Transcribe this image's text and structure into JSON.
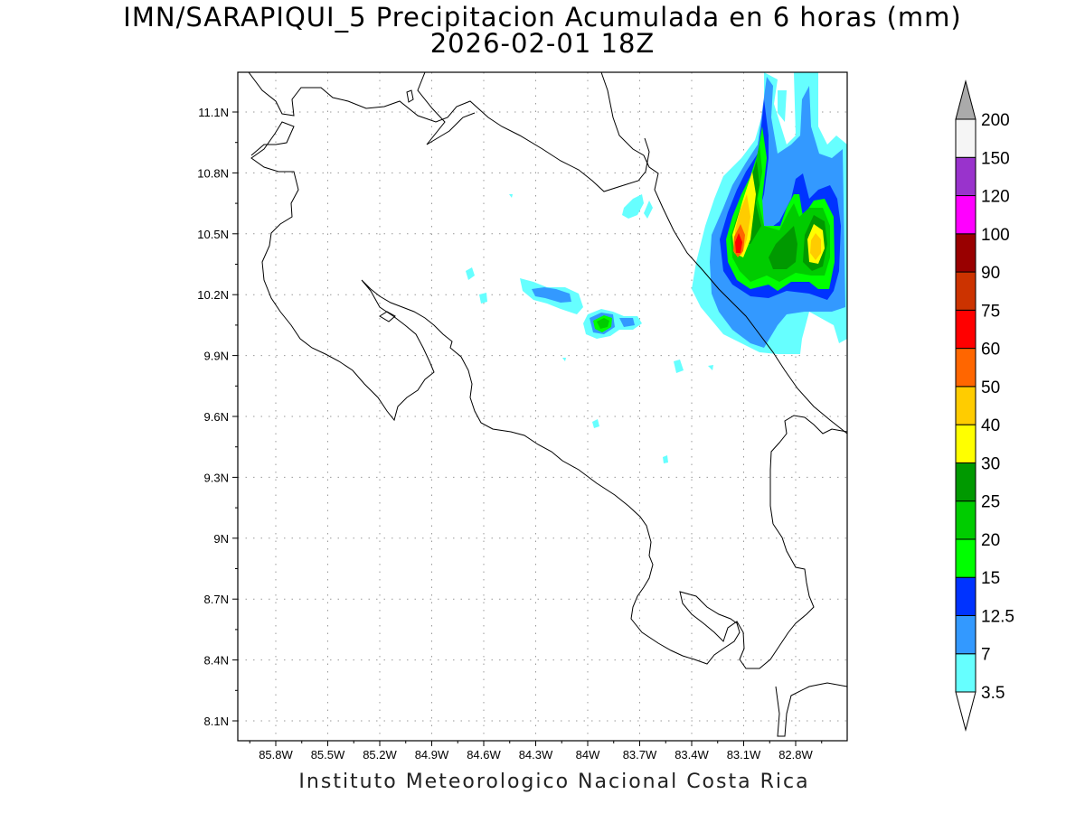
{
  "header": {
    "title": "IMN/SARAPIQUI_5 Precipitacion Acumulada en 6 horas (mm)",
    "subtitle": "2026-02-01 18Z"
  },
  "footer": {
    "credit": "Instituto Meteorologico Nacional Costa Rica"
  },
  "map": {
    "lat_range": [
      8.0,
      11.3
    ],
    "lon_range": [
      -85.97,
      -82.98
    ],
    "lat_ticks": [
      "11.1N",
      "10.8N",
      "10.5N",
      "10.2N",
      "9.9N",
      "9.6N",
      "9.3N",
      "9N",
      "8.7N",
      "8.4N",
      "8.1N"
    ],
    "lon_ticks": [
      "85.8W",
      "85.5W",
      "85.2W",
      "84.9W",
      "84.6W",
      "84.3W",
      "84W",
      "83.7W",
      "83.4W",
      "83.1W",
      "82.8W"
    ],
    "grid": true
  },
  "colorbar": {
    "levels": [
      "3.5",
      "7",
      "12.5",
      "15",
      "20",
      "25",
      "30",
      "40",
      "50",
      "60",
      "75",
      "90",
      "100",
      "120",
      "150",
      "200"
    ],
    "colors": [
      "#66ffff",
      "#3399ff",
      "#0033ff",
      "#00ff00",
      "#00cc00",
      "#009900",
      "#ffff00",
      "#ffcc00",
      "#ff6600",
      "#ff0000",
      "#cc3300",
      "#990000",
      "#ff00ff",
      "#9933cc",
      "#f5f5f5",
      "#aaaaaa"
    ],
    "units": "mm"
  }
}
